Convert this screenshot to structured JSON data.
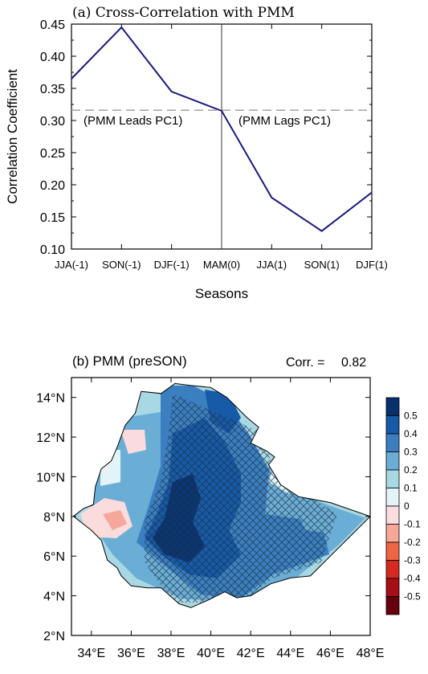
{
  "chart_data": [
    {
      "type": "line",
      "title": "(a) Cross-Correlation with PMM",
      "xlabel": "Seasons",
      "ylabel": "Correlation Coefficient",
      "categories": [
        "JJA(-1)",
        "SON(-1)",
        "DJF(-1)",
        "MAM(0)",
        "JJA(1)",
        "SON(1)",
        "DJF(1)"
      ],
      "values": [
        0.365,
        0.445,
        0.345,
        0.315,
        0.18,
        0.128,
        0.188
      ],
      "ylim": [
        0.1,
        0.45
      ],
      "yticks": [
        "0.10",
        "0.15",
        "0.20",
        "0.25",
        "0.30",
        "0.35",
        "0.40",
        "0.45"
      ],
      "threshold": 0.316,
      "annotations": [
        "(PMM Leads PC1)",
        "(PMM Lags PC1)"
      ],
      "line_color": "#1a1a7e",
      "threshold_color": "#9a9a9a"
    },
    {
      "type": "heatmap",
      "title": "(b) PMM (preSON)",
      "corr_label": "Corr. =",
      "corr_value": "0.82",
      "x_ticks": [
        "34°E",
        "36°E",
        "38°E",
        "40°E",
        "42°E",
        "44°E",
        "46°E",
        "48°E"
      ],
      "y_ticks": [
        "14°N",
        "12°N",
        "10°N",
        "8°N",
        "6°N",
        "4°N",
        "2°N"
      ],
      "xlim": [
        33,
        48
      ],
      "ylim": [
        2,
        15
      ],
      "colorbar_labels": [
        "0.5",
        "0.4",
        "0.3",
        "0.2",
        "0.1",
        "0",
        "-0.1",
        "-0.2",
        "-0.3",
        "-0.4",
        "-0.5"
      ],
      "colorbar_colors": [
        "#08306b",
        "#175ba8",
        "#3b7fc0",
        "#6aaed6",
        "#a8d8e3",
        "#e2f4f8",
        "#fbdcdc",
        "#f7a79a",
        "#ef6443",
        "#d42a1f",
        "#a50f15",
        "#67000d"
      ],
      "hatch_note": "significant"
    }
  ]
}
